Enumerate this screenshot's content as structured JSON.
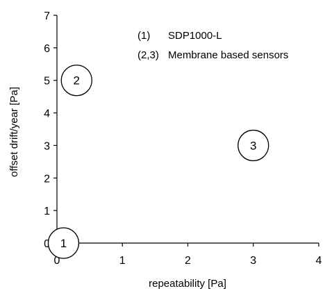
{
  "chart_data": {
    "type": "scatter",
    "title": "",
    "xlabel": "repeatability [Pa]",
    "ylabel": "offset drift/year [Pa]",
    "xlim": [
      0,
      4
    ],
    "ylim": [
      0,
      7
    ],
    "x_ticks": [
      0,
      1,
      2,
      3,
      4
    ],
    "y_ticks": [
      0,
      1,
      2,
      3,
      4,
      5,
      6,
      7
    ],
    "grid": false,
    "legend": {
      "placement": "top-right",
      "entries": [
        {
          "key": "(1)",
          "text": "SDP1000-L"
        },
        {
          "key": "(2,3)",
          "text": "Membrane based sensors"
        }
      ]
    },
    "points": [
      {
        "label": "1",
        "x": 0.1,
        "y": 0.0
      },
      {
        "label": "2",
        "x": 0.3,
        "y": 5.0
      },
      {
        "label": "3",
        "x": 3.0,
        "y": 3.0
      }
    ],
    "colors": {
      "axis": "#000000",
      "marker_stroke": "#000000",
      "marker_fill": "#ffffff"
    }
  }
}
